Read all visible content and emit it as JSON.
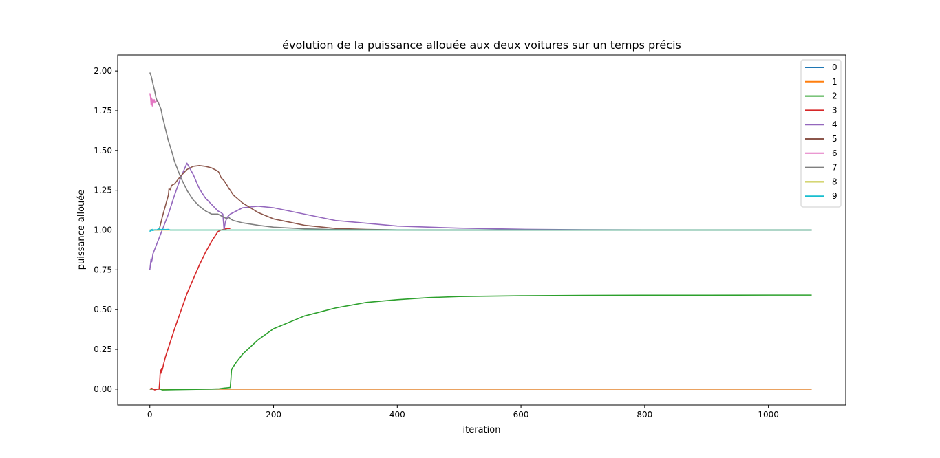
{
  "chart_data": {
    "type": "line",
    "title": "évolution de la puissance allouée aux deux voitures sur un temps précis",
    "xlabel": "iteration",
    "ylabel": "puissance allouée",
    "xlim": [
      -52,
      1125
    ],
    "ylim": [
      -0.1,
      2.1
    ],
    "xticks": [
      0,
      200,
      400,
      600,
      800,
      1000
    ],
    "yticks": [
      0.0,
      0.25,
      0.5,
      0.75,
      1.0,
      1.25,
      1.5,
      1.75,
      2.0
    ],
    "xtick_labels": [
      "0",
      "200",
      "400",
      "600",
      "800",
      "1000"
    ],
    "ytick_labels": [
      "0.00",
      "0.25",
      "0.50",
      "0.75",
      "1.00",
      "1.25",
      "1.50",
      "1.75",
      "2.00"
    ],
    "grid": false,
    "legend_position": "top-right",
    "series": [
      {
        "name": "0",
        "color": "#1f77b4",
        "x": [
          0,
          1070
        ],
        "y": [
          0.0,
          0.0
        ]
      },
      {
        "name": "1",
        "color": "#ff7f0e",
        "x": [
          0,
          1070
        ],
        "y": [
          0.0,
          0.0
        ]
      },
      {
        "name": "2",
        "color": "#2ca02c",
        "x": [
          0,
          10,
          17,
          20,
          50,
          100,
          112,
          120,
          130,
          131,
          132,
          133,
          140,
          150,
          175,
          200,
          250,
          300,
          350,
          400,
          450,
          500,
          600,
          700,
          800,
          900,
          1000,
          1070
        ],
        "y": [
          0.0,
          0.0,
          0.0,
          -0.005,
          -0.003,
          0.0,
          0.002,
          0.006,
          0.01,
          0.06,
          0.12,
          0.13,
          0.17,
          0.22,
          0.31,
          0.38,
          0.46,
          0.51,
          0.545,
          0.562,
          0.575,
          0.582,
          0.587,
          0.589,
          0.59,
          0.59,
          0.591,
          0.591
        ]
      },
      {
        "name": "3",
        "color": "#d62728",
        "x": [
          0,
          3,
          8,
          12,
          15,
          16,
          17,
          18,
          19,
          20,
          25,
          30,
          40,
          50,
          60,
          70,
          80,
          90,
          100,
          110,
          115,
          120,
          125,
          130
        ],
        "y": [
          0.0,
          0.005,
          -0.005,
          0.0,
          0.0,
          0.05,
          0.12,
          0.1,
          0.13,
          0.12,
          0.2,
          0.26,
          0.38,
          0.49,
          0.6,
          0.69,
          0.78,
          0.86,
          0.93,
          0.99,
          1.0,
          1.005,
          1.01,
          1.01
        ]
      },
      {
        "name": "4",
        "color": "#9467bd",
        "x": [
          0,
          2,
          3,
          5,
          7,
          10,
          15,
          20,
          30,
          40,
          50,
          60,
          70,
          80,
          90,
          100,
          110,
          115,
          118,
          120,
          122,
          125,
          130,
          140,
          150,
          175,
          200,
          250,
          300,
          400,
          500,
          600,
          700,
          800,
          1000,
          1070
        ],
        "y": [
          0.75,
          0.82,
          0.8,
          0.85,
          0.87,
          0.9,
          0.95,
          1.0,
          1.1,
          1.22,
          1.33,
          1.42,
          1.35,
          1.26,
          1.2,
          1.16,
          1.12,
          1.11,
          1.1,
          1.0,
          1.05,
          1.08,
          1.1,
          1.12,
          1.14,
          1.15,
          1.14,
          1.1,
          1.06,
          1.025,
          1.012,
          1.005,
          1.002,
          1.001,
          1.0,
          1.0
        ]
      },
      {
        "name": "5",
        "color": "#8c564b",
        "x": [
          0,
          3,
          8,
          15,
          20,
          25,
          30,
          31,
          33,
          35,
          40,
          50,
          60,
          70,
          80,
          90,
          100,
          110,
          112,
          115,
          120,
          125,
          128,
          130,
          135,
          150,
          175,
          200,
          250,
          300,
          350,
          400,
          500,
          600,
          700,
          1070
        ],
        "y": [
          1.0,
          1.0,
          1.0,
          1.0,
          1.08,
          1.15,
          1.22,
          1.26,
          1.25,
          1.28,
          1.29,
          1.34,
          1.38,
          1.4,
          1.405,
          1.4,
          1.39,
          1.37,
          1.36,
          1.33,
          1.31,
          1.28,
          1.26,
          1.25,
          1.22,
          1.17,
          1.11,
          1.07,
          1.03,
          1.01,
          1.004,
          1.001,
          1.0,
          1.0,
          1.0,
          1.0
        ]
      },
      {
        "name": "6",
        "color": "#e377c2",
        "x": [
          0,
          1,
          2,
          3,
          4,
          5,
          6,
          7,
          8,
          10,
          12,
          15
        ],
        "y": [
          1.86,
          1.84,
          1.79,
          1.83,
          1.78,
          1.82,
          1.8,
          1.82,
          1.8,
          1.81,
          1.81,
          1.8
        ]
      },
      {
        "name": "7",
        "color": "#7f7f7f",
        "x": [
          0,
          2,
          5,
          8,
          10,
          12,
          15,
          18,
          20,
          25,
          30,
          35,
          40,
          50,
          60,
          70,
          80,
          90,
          100,
          110,
          120,
          125,
          128,
          130,
          135,
          150,
          175,
          200,
          250,
          300,
          400,
          500,
          1070
        ],
        "y": [
          1.99,
          1.97,
          1.92,
          1.87,
          1.83,
          1.81,
          1.79,
          1.76,
          1.72,
          1.64,
          1.56,
          1.5,
          1.43,
          1.33,
          1.25,
          1.19,
          1.15,
          1.12,
          1.1,
          1.1,
          1.08,
          1.07,
          1.08,
          1.07,
          1.06,
          1.045,
          1.03,
          1.018,
          1.008,
          1.003,
          1.001,
          1.0,
          1.0
        ]
      },
      {
        "name": "8",
        "color": "#bcbd22",
        "x": [
          0,
          1070
        ],
        "y": [
          1.0,
          1.0
        ]
      },
      {
        "name": "9",
        "color": "#17becf",
        "x": [
          0,
          1,
          2,
          3,
          4,
          5,
          6,
          8,
          10,
          12,
          15,
          18,
          20,
          25,
          30,
          33,
          40,
          60,
          100,
          200,
          500,
          1070
        ],
        "y": [
          0.99,
          0.998,
          0.995,
          1.003,
          0.997,
          1.005,
          0.998,
          1.002,
          1.0,
          1.003,
          1.008,
          1.002,
          1.005,
          1.003,
          1.004,
          1.0,
          1.0,
          1.0,
          1.0,
          1.0,
          1.0,
          1.0
        ]
      }
    ]
  }
}
